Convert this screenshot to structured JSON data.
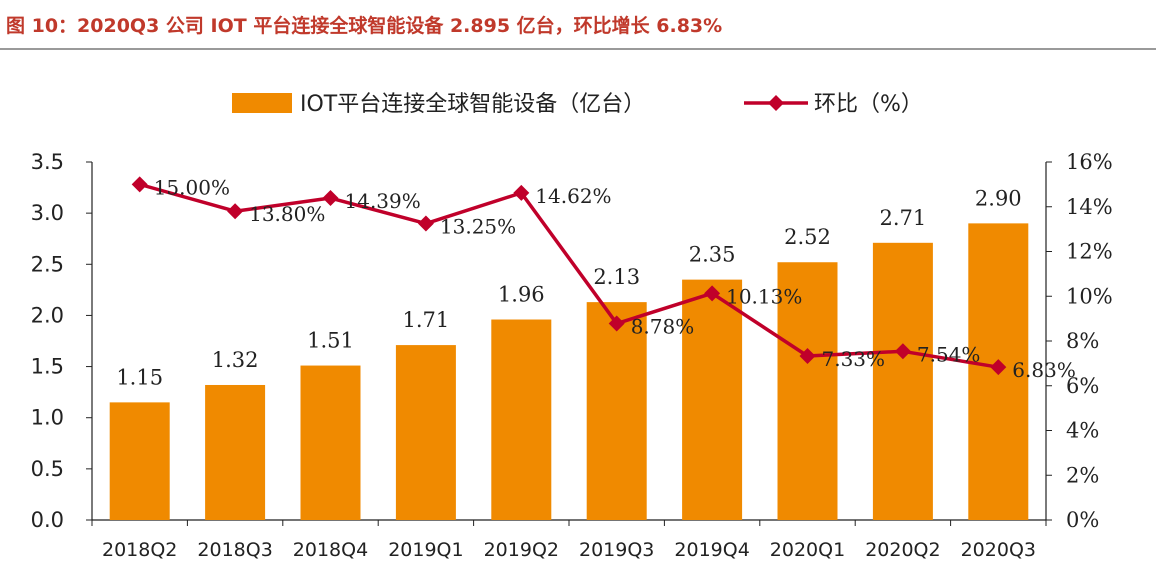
{
  "title": "图 10：2020Q3 公司 IOT 平台连接全球智能设备 2.895 亿台，环比增长 6.83%",
  "colors": {
    "bar": "#F08A00",
    "line": "#C0002A",
    "axis": "#222222"
  },
  "chart_data": {
    "type": "bar",
    "categories": [
      "2018Q2",
      "2018Q3",
      "2018Q4",
      "2019Q1",
      "2019Q2",
      "2019Q3",
      "2019Q4",
      "2020Q1",
      "2020Q2",
      "2020Q3"
    ],
    "series": [
      {
        "name": "IOT平台连接全球智能设备（亿台）",
        "type": "bar",
        "axis": "left",
        "values": [
          1.15,
          1.32,
          1.51,
          1.71,
          1.96,
          2.13,
          2.35,
          2.52,
          2.71,
          2.9
        ],
        "labels": [
          "1.15",
          "1.32",
          "1.51",
          "1.71",
          "1.96",
          "2.13",
          "2.35",
          "2.52",
          "2.71",
          "2.90"
        ]
      },
      {
        "name": "环比（%）",
        "type": "line",
        "axis": "right",
        "values": [
          15.0,
          13.8,
          14.39,
          13.25,
          14.62,
          8.78,
          10.13,
          7.33,
          7.54,
          6.83
        ],
        "labels": [
          "15.00%",
          "13.80%",
          "14.39%",
          "13.25%",
          "14.62%",
          "8.78%",
          "10.13%",
          "7.33%",
          "7.54%",
          "6.83%"
        ]
      }
    ],
    "y_left": {
      "min": 0,
      "max": 3.5,
      "ticks": [
        "0.0",
        "0.5",
        "1.0",
        "1.5",
        "2.0",
        "2.5",
        "3.0",
        "3.5"
      ]
    },
    "y_right": {
      "min": 0,
      "max": 16,
      "ticks": [
        "0%",
        "2%",
        "4%",
        "6%",
        "8%",
        "10%",
        "12%",
        "14%",
        "16%"
      ]
    },
    "legend": {
      "position": "top-center"
    },
    "grid": false
  }
}
